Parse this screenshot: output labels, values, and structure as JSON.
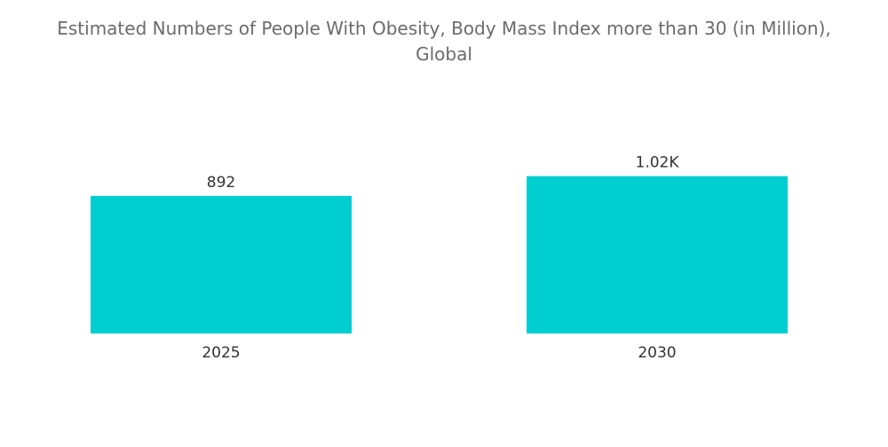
{
  "title_lines": [
    "Estimated Numbers of People With Obesity, Body Mass Index more than 30 (in Million),",
    "Global"
  ],
  "colors": {
    "bar": "#00CED1",
    "title": "#6b6b6b",
    "label": "#333333"
  },
  "chart_data": {
    "type": "bar",
    "title": "Estimated Numbers of People With Obesity, Body Mass Index more than 30 (in Million), Global",
    "categories": [
      "2025",
      "2030"
    ],
    "values": [
      892,
      1020
    ],
    "data_labels": [
      "892",
      "1.02K"
    ],
    "xlabel": "",
    "ylabel": "",
    "ylim": [
      0,
      1150
    ],
    "grid": false,
    "legend": "none"
  }
}
